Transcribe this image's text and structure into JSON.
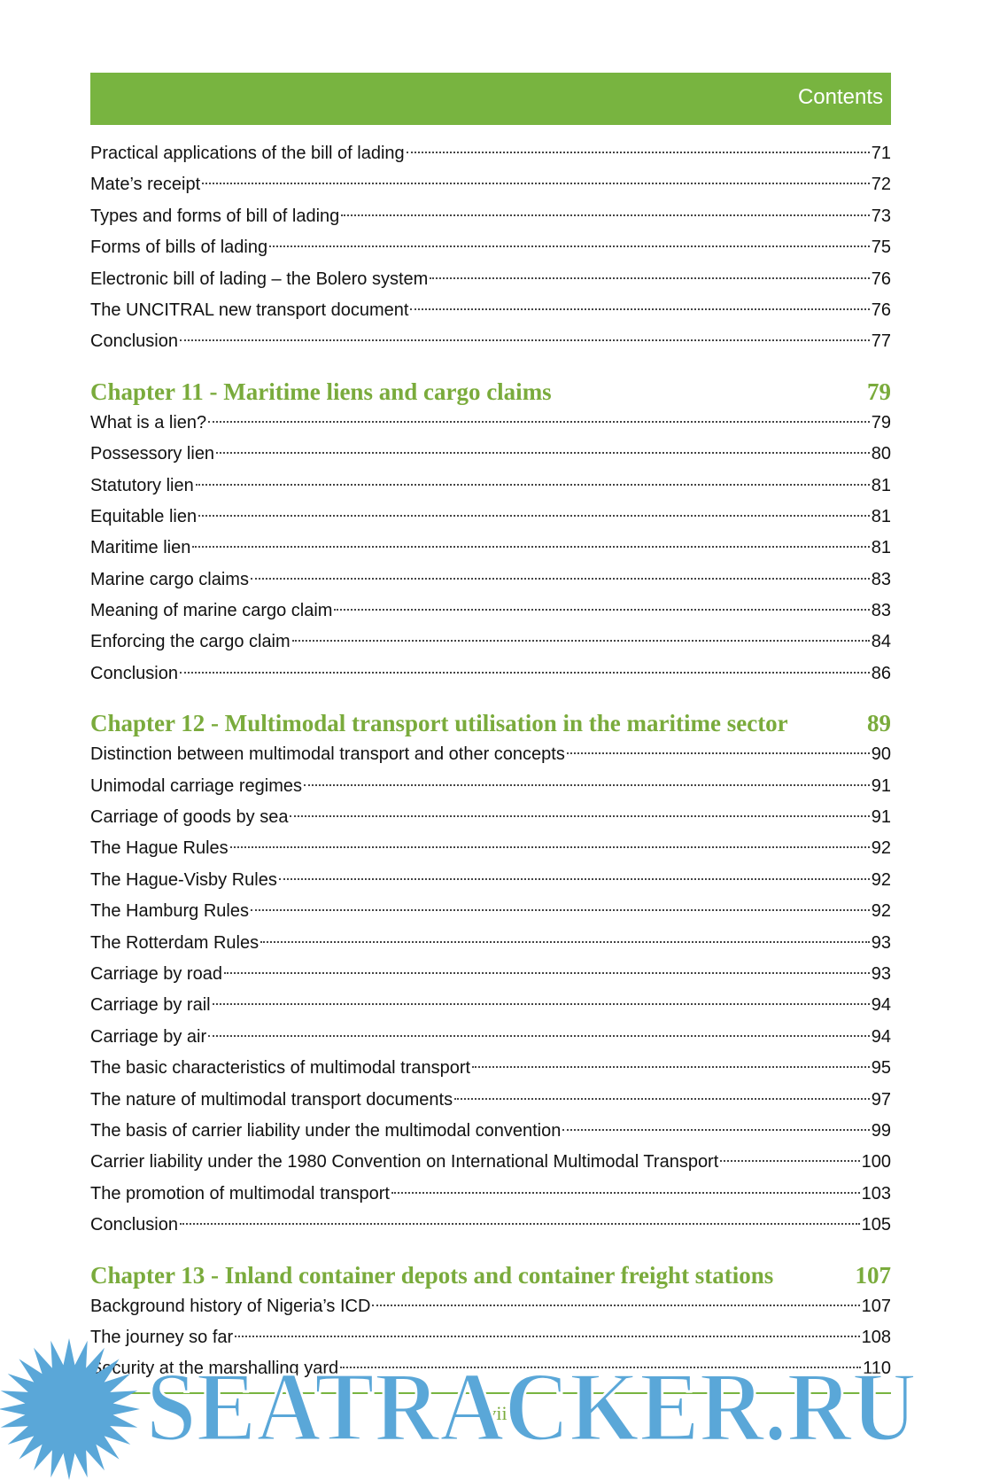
{
  "header": {
    "title": "Contents"
  },
  "sections": [
    {
      "entries": [
        {
          "title": "Practical applications of the bill of lading",
          "page": 71
        },
        {
          "title": "Mate’s receipt",
          "page": 72
        },
        {
          "title": "Types and forms of bill of lading",
          "page": 73
        },
        {
          "title": "Forms of bills of lading",
          "page": 75
        },
        {
          "title": "Electronic bill of lading – the Bolero system",
          "page": 76
        },
        {
          "title": "The UNCITRAL new transport document",
          "page": 76
        },
        {
          "title": "Conclusion",
          "page": 77
        }
      ]
    },
    {
      "chapter": {
        "title": "Chapter 11 - Maritime liens and cargo claims",
        "page": 79
      },
      "entries": [
        {
          "title": "What is a lien?",
          "page": 79
        },
        {
          "title": "Possessory lien",
          "page": 80
        },
        {
          "title": "Statutory lien",
          "page": 81
        },
        {
          "title": "Equitable lien",
          "page": 81
        },
        {
          "title": "Maritime lien",
          "page": 81
        },
        {
          "title": "Marine cargo claims",
          "page": 83
        },
        {
          "title": "Meaning of marine cargo claim",
          "page": 83
        },
        {
          "title": "Enforcing the cargo claim",
          "page": 84
        },
        {
          "title": "Conclusion",
          "page": 86
        }
      ]
    },
    {
      "chapter": {
        "title": "Chapter 12 - Multimodal transport utilisation in the maritime sector",
        "page": 89
      },
      "entries": [
        {
          "title": "Distinction between multimodal transport and other concepts",
          "page": 90
        },
        {
          "title": "Unimodal carriage regimes",
          "page": 91
        },
        {
          "title": "Carriage of goods by sea",
          "page": 91
        },
        {
          "title": "The Hague Rules",
          "page": 92
        },
        {
          "title": "The Hague-Visby Rules",
          "page": 92
        },
        {
          "title": "The Hamburg Rules",
          "page": 92
        },
        {
          "title": "The Rotterdam Rules",
          "page": 93
        },
        {
          "title": "Carriage by road",
          "page": 93
        },
        {
          "title": "Carriage by rail",
          "page": 94
        },
        {
          "title": "Carriage by air",
          "page": 94
        },
        {
          "title": "The basic characteristics of multimodal transport",
          "page": 95
        },
        {
          "title": "The nature of multimodal transport documents",
          "page": 97
        },
        {
          "title": "The basis of carrier liability under the multimodal convention",
          "page": 99
        },
        {
          "title": "Carrier liability under the 1980 Convention on International Multimodal Transport",
          "page": 100
        },
        {
          "title": "The promotion of multimodal transport",
          "page": 103
        },
        {
          "title": "Conclusion",
          "page": 105
        }
      ]
    },
    {
      "chapter": {
        "title": "Chapter 13 - Inland container depots and container freight stations",
        "page": 107
      },
      "entries": [
        {
          "title": "Background history of Nigeria’s ICD",
          "page": 107
        },
        {
          "title": "The journey so far",
          "page": 108
        },
        {
          "title": "Security at the marshalling yard",
          "page": 110
        }
      ]
    }
  ],
  "footer": {
    "page_number": "xvii"
  },
  "watermark": "SEATRACKER.RU"
}
